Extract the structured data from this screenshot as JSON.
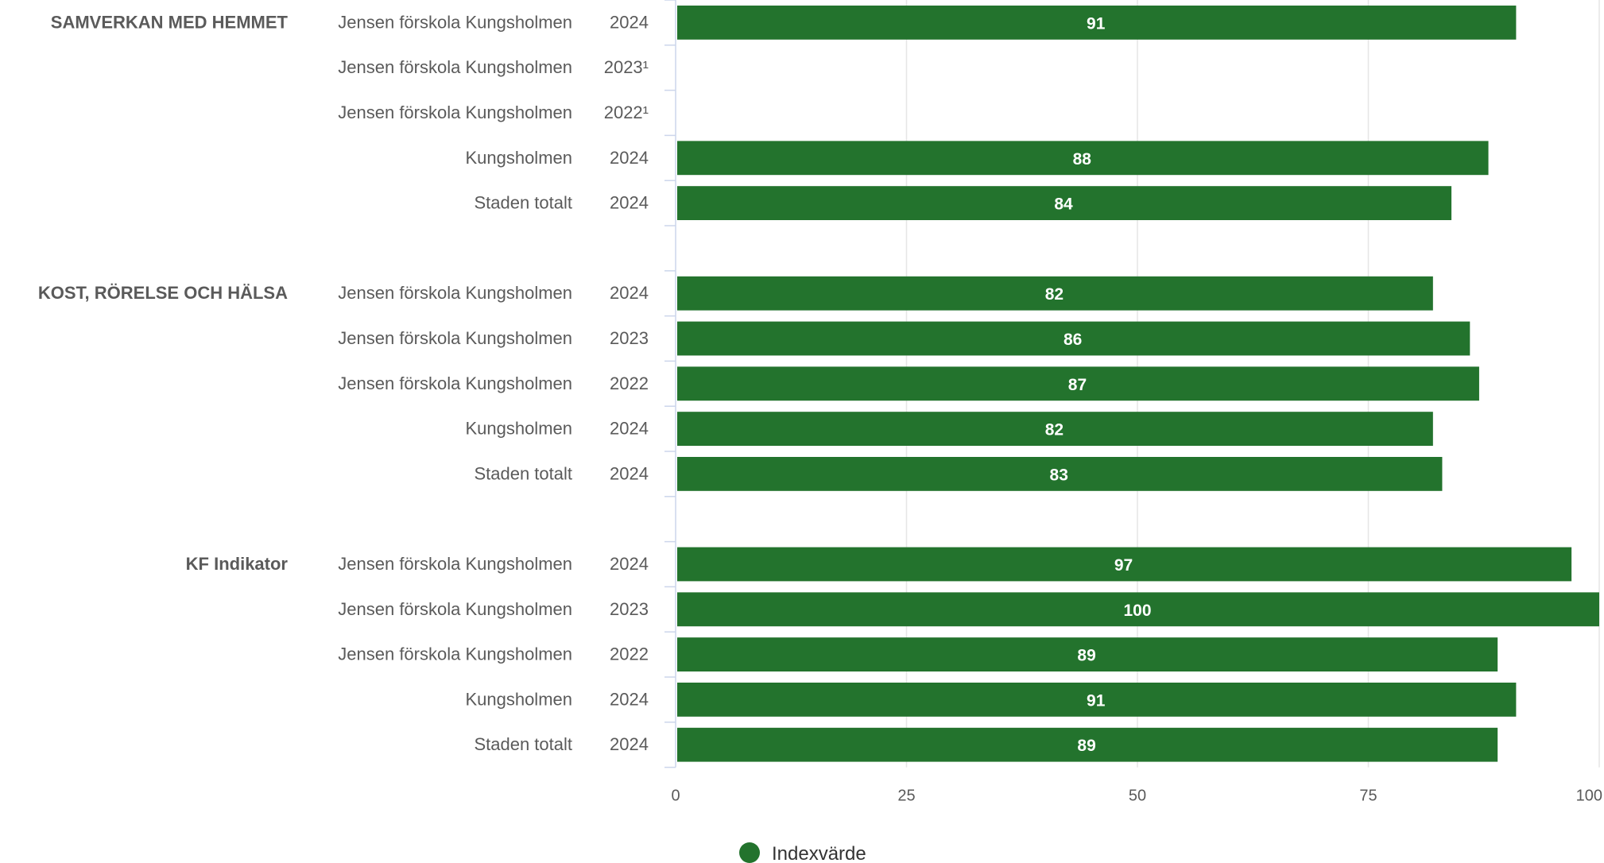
{
  "chart_data": {
    "type": "bar",
    "orientation": "horizontal",
    "xlim": [
      0,
      100
    ],
    "x_ticks": [
      0,
      25,
      50,
      75,
      100
    ],
    "grid": true,
    "legend": {
      "placement": "bottom-left",
      "entries": [
        "Indexvärde"
      ]
    },
    "colors": {
      "bar": "#23732d",
      "grid": "#e6e6e6",
      "axis": "#ccd6eb"
    },
    "groups": [
      {
        "name": "SAMVERKAN MED HEMMET",
        "rows": [
          {
            "label": "Jensen förskola Kungsholmen",
            "year": "2024",
            "value": 91
          },
          {
            "label": "Jensen förskola Kungsholmen",
            "year": "2023¹",
            "value": null
          },
          {
            "label": "Jensen förskola Kungsholmen",
            "year": "2022¹",
            "value": null
          },
          {
            "label": "Kungsholmen",
            "year": "2024",
            "value": 88
          },
          {
            "label": "Staden totalt",
            "year": "2024",
            "value": 84
          }
        ]
      },
      {
        "name": "KOST, RÖRELSE OCH HÄLSA",
        "rows": [
          {
            "label": "Jensen förskola Kungsholmen",
            "year": "2024",
            "value": 82
          },
          {
            "label": "Jensen förskola Kungsholmen",
            "year": "2023",
            "value": 86
          },
          {
            "label": "Jensen förskola Kungsholmen",
            "year": "2022",
            "value": 87
          },
          {
            "label": "Kungsholmen",
            "year": "2024",
            "value": 82
          },
          {
            "label": "Staden totalt",
            "year": "2024",
            "value": 83
          }
        ]
      },
      {
        "name": "KF Indikator",
        "rows": [
          {
            "label": "Jensen förskola Kungsholmen",
            "year": "2024",
            "value": 97
          },
          {
            "label": "Jensen förskola Kungsholmen",
            "year": "2023",
            "value": 100
          },
          {
            "label": "Jensen förskola Kungsholmen",
            "year": "2022",
            "value": 89
          },
          {
            "label": "Kungsholmen",
            "year": "2024",
            "value": 91
          },
          {
            "label": "Staden totalt",
            "year": "2024",
            "value": 89
          }
        ]
      }
    ]
  }
}
